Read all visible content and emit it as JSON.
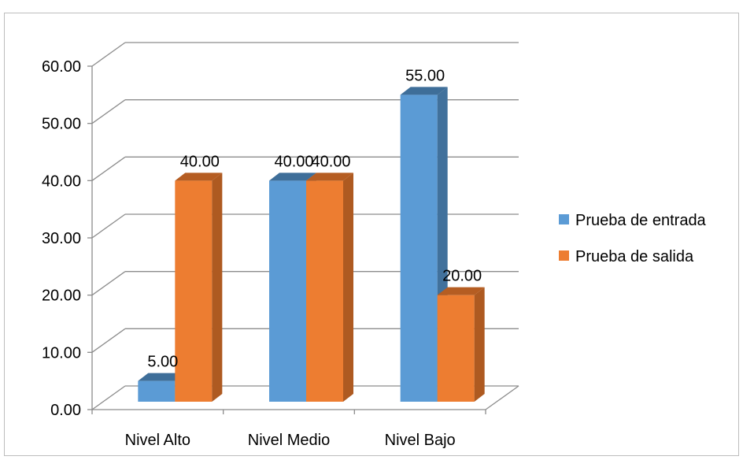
{
  "chart_data": {
    "type": "bar",
    "style": "3d-clustered-column",
    "title": "",
    "xlabel": "",
    "ylabel": "",
    "categories": [
      "Nivel Alto",
      "Nivel Medio",
      "Nivel Bajo"
    ],
    "series": [
      {
        "name": "Prueba de entrada",
        "values": [
          5.0,
          40.0,
          55.0
        ],
        "data_labels": [
          "5.00",
          "40.00",
          "55.00"
        ],
        "color": "#5B9BD5",
        "side_color": "#41719C",
        "top_color": "#3E6E99"
      },
      {
        "name": "Prueba de salida",
        "values": [
          40.0,
          40.0,
          20.0
        ],
        "data_labels": [
          "40.00",
          "40.00",
          "20.00"
        ],
        "color": "#ED7D31",
        "side_color": "#AE5A21",
        "top_color": "#B55D22"
      }
    ],
    "ylim": [
      0,
      60
    ],
    "yticks": [
      "0.00",
      "10.00",
      "20.00",
      "30.00",
      "40.00",
      "50.00",
      "60.00"
    ],
    "grid": true,
    "legend_position": "right"
  }
}
